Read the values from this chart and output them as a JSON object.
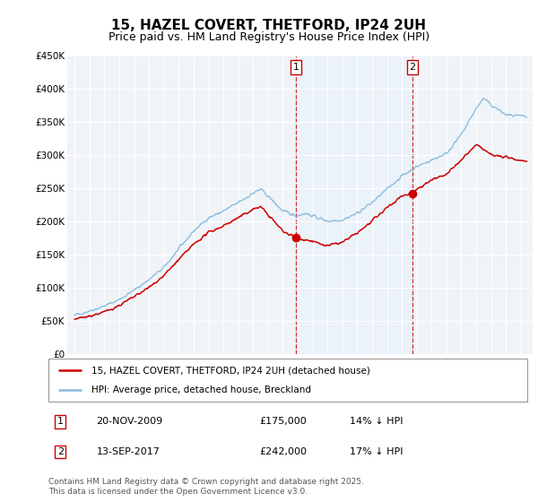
{
  "title": "15, HAZEL COVERT, THETFORD, IP24 2UH",
  "subtitle": "Price paid vs. HM Land Registry's House Price Index (HPI)",
  "ylim": [
    0,
    450000
  ],
  "yticks": [
    0,
    50000,
    100000,
    150000,
    200000,
    250000,
    300000,
    350000,
    400000,
    450000
  ],
  "ytick_labels": [
    "£0",
    "£50K",
    "£100K",
    "£150K",
    "£200K",
    "£250K",
    "£300K",
    "£350K",
    "£400K",
    "£450K"
  ],
  "sale1_date": "20-NOV-2009",
  "sale1_price": 175000,
  "sale1_hpi_diff": "14% ↓ HPI",
  "sale1_x": 2009.89,
  "sale2_date": "13-SEP-2017",
  "sale2_price": 242000,
  "sale2_hpi_diff": "17% ↓ HPI",
  "sale2_x": 2017.71,
  "hpi_color": "#88bbdd",
  "price_color": "#cc0000",
  "vline_color": "#cc0000",
  "shade_color": "#ddeeff",
  "background_color": "#f0f4f8",
  "plot_bg": "#f0f4f8",
  "legend_label_price": "15, HAZEL COVERT, THETFORD, IP24 2UH (detached house)",
  "legend_label_hpi": "HPI: Average price, detached house, Breckland",
  "footer": "Contains HM Land Registry data © Crown copyright and database right 2025.\nThis data is licensed under the Open Government Licence v3.0.",
  "title_fontsize": 11,
  "subtitle_fontsize": 9,
  "noise_seed": 42
}
